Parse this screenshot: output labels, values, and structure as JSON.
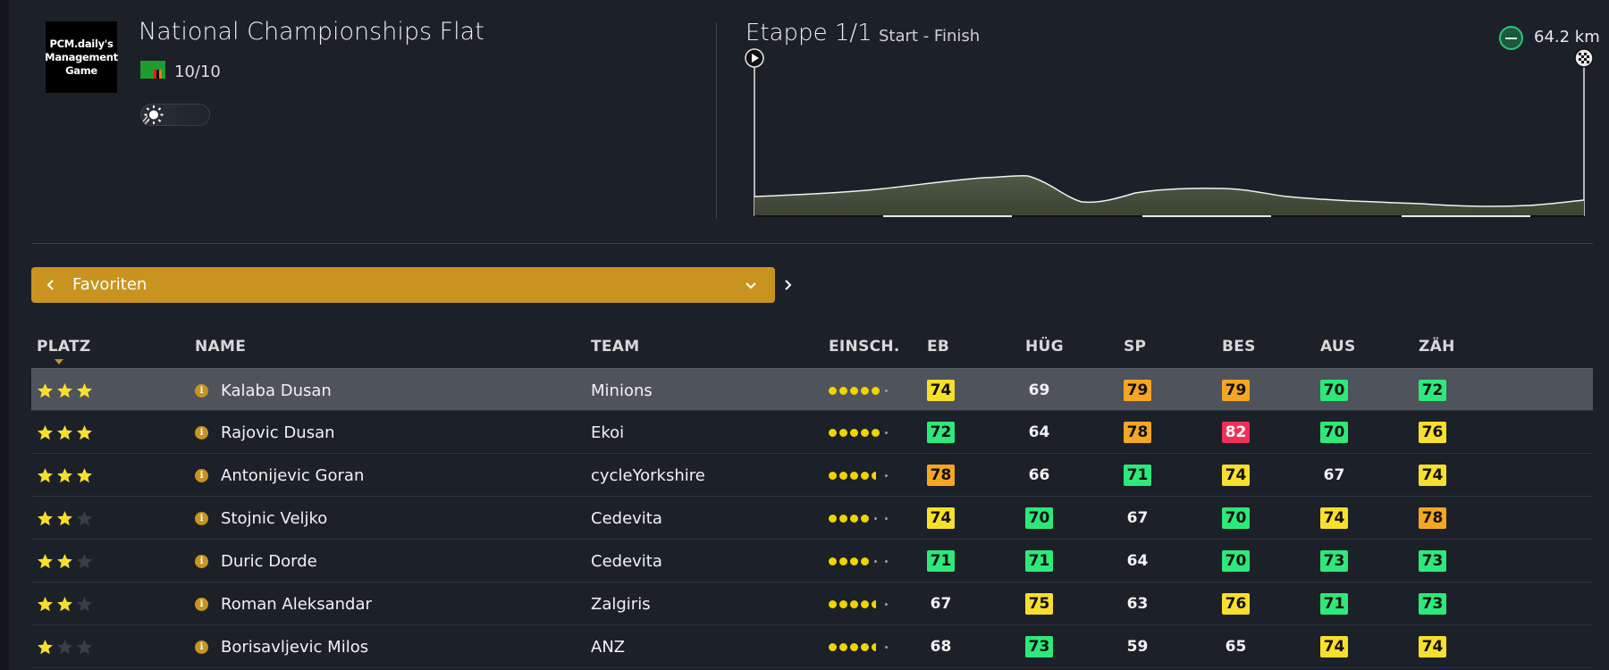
{
  "header": {
    "logo_lines": [
      "PCM.daily's",
      "Management",
      "Game"
    ],
    "race_title": "National Championships Flat",
    "rating": "10/10",
    "stage_title": "Etappe 1/1",
    "stage_subtitle": "Start - Finish",
    "distance": "64.2 km"
  },
  "selector": {
    "label": "Favoriten"
  },
  "columns": {
    "platz": "PLATZ",
    "name": "NAME",
    "team": "TEAM",
    "einsch": "EINSCH.",
    "eb": "EB",
    "hug": "HÜG",
    "sp": "SP",
    "bes": "BES",
    "aus": "AUS",
    "zah": "ZÄH"
  },
  "colors": {
    "green": "#2ee87a",
    "yellow": "#f7df2e",
    "orange": "#f5a623",
    "red": "#f0305a",
    "accent": "#c8941f"
  },
  "riders": [
    {
      "stars": 3,
      "name": "Kalaba Dusan",
      "team": "Minions",
      "form": "5f",
      "stats": [
        [
          74,
          "yellow"
        ],
        [
          69,
          "none"
        ],
        [
          79,
          "orange"
        ],
        [
          79,
          "orange"
        ],
        [
          70,
          "green"
        ],
        [
          72,
          "green"
        ]
      ]
    },
    {
      "stars": 3,
      "name": "Rajovic Dusan",
      "team": "Ekoi",
      "form": "5f",
      "stats": [
        [
          72,
          "green"
        ],
        [
          64,
          "none"
        ],
        [
          78,
          "orange"
        ],
        [
          82,
          "red"
        ],
        [
          70,
          "green"
        ],
        [
          76,
          "yellow"
        ]
      ]
    },
    {
      "stars": 3,
      "name": "Antonijevic Goran",
      "team": "cycleYorkshire",
      "form": "4h",
      "stats": [
        [
          78,
          "orange"
        ],
        [
          66,
          "none"
        ],
        [
          71,
          "green"
        ],
        [
          74,
          "yellow"
        ],
        [
          67,
          "none"
        ],
        [
          74,
          "yellow"
        ]
      ]
    },
    {
      "stars": 2,
      "name": "Stojnic Veljko",
      "team": "Cedevita",
      "form": "4",
      "stats": [
        [
          74,
          "yellow"
        ],
        [
          70,
          "green"
        ],
        [
          67,
          "none"
        ],
        [
          70,
          "green"
        ],
        [
          74,
          "yellow"
        ],
        [
          78,
          "orange"
        ]
      ]
    },
    {
      "stars": 2,
      "name": "Duric Dorde",
      "team": "Cedevita",
      "form": "4",
      "stats": [
        [
          71,
          "green"
        ],
        [
          71,
          "green"
        ],
        [
          64,
          "none"
        ],
        [
          70,
          "green"
        ],
        [
          73,
          "green"
        ],
        [
          73,
          "green"
        ]
      ]
    },
    {
      "stars": 2,
      "name": "Roman Aleksandar",
      "team": "Zalgiris",
      "form": "4h",
      "stats": [
        [
          67,
          "none"
        ],
        [
          75,
          "yellow"
        ],
        [
          63,
          "none"
        ],
        [
          76,
          "yellow"
        ],
        [
          71,
          "green"
        ],
        [
          73,
          "green"
        ]
      ]
    },
    {
      "stars": 1,
      "name": "Borisavljevic Milos",
      "team": "ANZ",
      "form": "4h",
      "stats": [
        [
          68,
          "none"
        ],
        [
          73,
          "green"
        ],
        [
          59,
          "none"
        ],
        [
          65,
          "none"
        ],
        [
          74,
          "yellow"
        ],
        [
          74,
          "yellow"
        ]
      ]
    }
  ]
}
